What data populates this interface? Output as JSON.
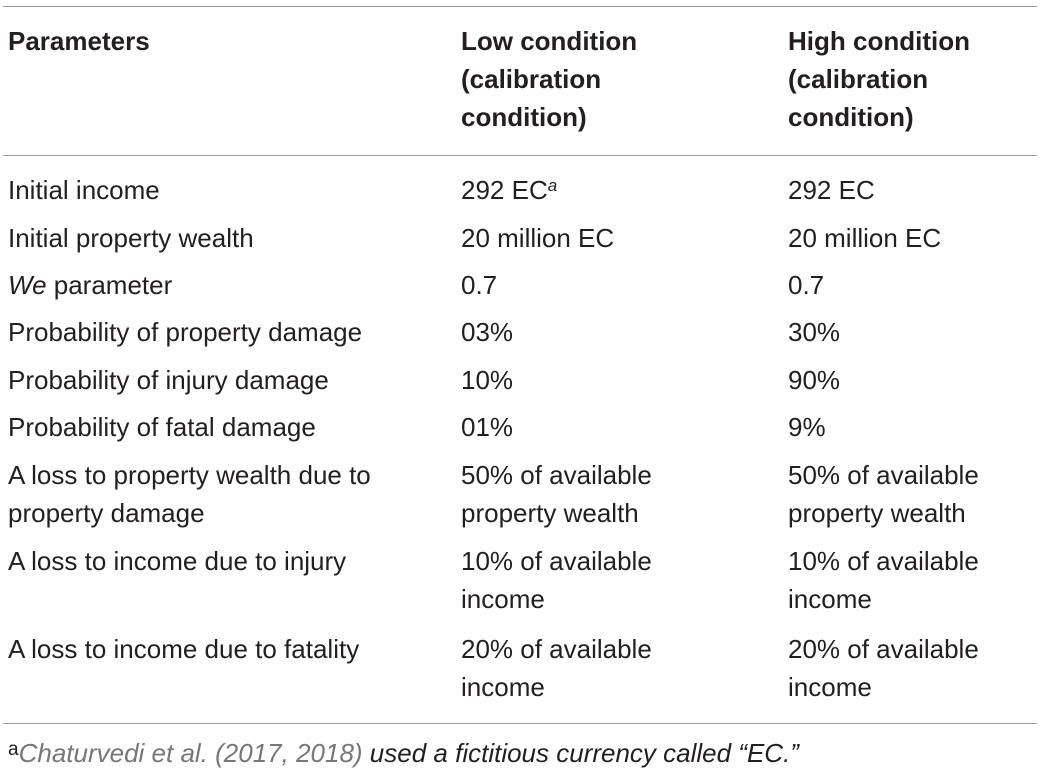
{
  "header": {
    "col1": "Parameters",
    "col2": "Low condition\n(calibration\ncondition)",
    "col3": "High condition\n(calibration\ncondition)"
  },
  "rows": [
    {
      "param_prefix": "",
      "param_italic": "",
      "param": "Initial income",
      "low": "292 EC",
      "low_sup": "a",
      "high": "292 EC"
    },
    {
      "param_prefix": "",
      "param_italic": "",
      "param": "Initial property wealth",
      "low": "20 million EC",
      "low_sup": "",
      "high": "20 million EC"
    },
    {
      "param_prefix": "",
      "param_italic": "We",
      "param": " parameter",
      "low": "0.7",
      "low_sup": "",
      "high": "0.7"
    },
    {
      "param_prefix": "",
      "param_italic": "",
      "param": "Probability of property damage",
      "low": "03%",
      "low_sup": "",
      "high": "30%"
    },
    {
      "param_prefix": "",
      "param_italic": "",
      "param": "Probability of injury damage",
      "low": "10%",
      "low_sup": "",
      "high": "90%"
    },
    {
      "param_prefix": "",
      "param_italic": "",
      "param": "Probability of fatal damage",
      "low": "01%",
      "low_sup": "",
      "high": "9%"
    },
    {
      "param_prefix": "",
      "param_italic": "",
      "param": "A loss to property wealth due to property damage",
      "low": "50% of available property wealth",
      "low_sup": "",
      "high": "50% of available property wealth"
    },
    {
      "param_prefix": "",
      "param_italic": "",
      "param": "A loss to income due to injury",
      "low": "10% of available income",
      "low_sup": "",
      "high": "10% of available income"
    },
    {
      "param_prefix": "",
      "param_italic": "",
      "param": "A loss to income due to fatality",
      "low": "20% of available income",
      "low_sup": "",
      "high": "20% of available income"
    }
  ],
  "footnote": {
    "mark": "a",
    "citation": "Chaturvedi et al. (2017, 2018)",
    "text": " used a fictitious currency called “EC.”"
  }
}
